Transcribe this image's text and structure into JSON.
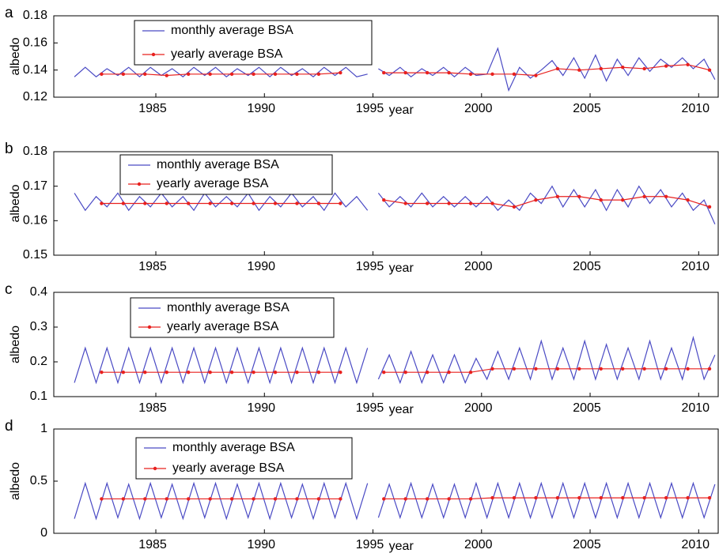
{
  "chart_data": [
    {
      "type": "line",
      "panel_label": "a",
      "xlabel": "year",
      "ylabel": "albedo",
      "xlim": [
        1980.3,
        2010.9
      ],
      "xticks": [
        1985,
        1990,
        1995,
        2000,
        2005,
        2010
      ],
      "ylim": [
        0.12,
        0.18
      ],
      "yticks": [
        0.12,
        0.14,
        0.16,
        0.18
      ],
      "legend": "upper left",
      "series": [
        {
          "name": "monthly average BSA",
          "color": "#4a4ac4",
          "marker": false,
          "x": [
            1981.25,
            1981.75,
            1982.25,
            1982.75,
            1983.25,
            1983.75,
            1984.25,
            1984.75,
            1985.25,
            1985.75,
            1986.25,
            1986.75,
            1987.25,
            1987.75,
            1988.25,
            1988.75,
            1989.25,
            1989.75,
            1990.25,
            1990.75,
            1991.25,
            1991.75,
            1992.25,
            1992.75,
            1993.25,
            1993.75,
            1994.25,
            1994.75,
            1995.0,
            1995.25,
            1995.75,
            1996.25,
            1996.75,
            1997.25,
            1997.75,
            1998.25,
            1998.75,
            1999.25,
            1999.75,
            2000.25,
            2000.75,
            2001.25,
            2001.75,
            2002.25,
            2002.75,
            2003.25,
            2003.75,
            2004.25,
            2004.75,
            2005.25,
            2005.75,
            2006.25,
            2006.75,
            2007.25,
            2007.75,
            2008.25,
            2008.75,
            2009.25,
            2009.75,
            2010.25,
            2010.75
          ],
          "values": [
            0.135,
            0.142,
            0.135,
            0.141,
            0.136,
            0.142,
            0.135,
            0.142,
            0.136,
            0.141,
            0.135,
            0.142,
            0.136,
            0.142,
            0.135,
            0.141,
            0.136,
            0.142,
            0.135,
            0.142,
            0.136,
            0.141,
            0.135,
            0.142,
            0.136,
            0.142,
            0.135,
            0.137,
            null,
            0.141,
            0.136,
            0.142,
            0.135,
            0.141,
            0.136,
            0.142,
            0.135,
            0.142,
            0.136,
            0.137,
            0.156,
            0.125,
            0.142,
            0.134,
            0.14,
            0.147,
            0.136,
            0.149,
            0.134,
            0.151,
            0.132,
            0.148,
            0.136,
            0.149,
            0.139,
            0.148,
            0.142,
            0.149,
            0.141,
            0.148,
            0.133
          ]
        },
        {
          "name": "yearly average BSA",
          "color": "#e8201e",
          "marker": true,
          "x": [
            1982.5,
            1983.5,
            1984.5,
            1985.5,
            1986.5,
            1987.5,
            1988.5,
            1989.5,
            1990.5,
            1991.5,
            1992.5,
            1993.5,
            1994.5,
            1995.5,
            1996.5,
            1997.5,
            1998.5,
            1999.5,
            2000.5,
            2001.5,
            2002.5,
            2003.5,
            2004.5,
            2005.5,
            2006.5,
            2007.5,
            2008.5,
            2009.5,
            2010.5
          ],
          "values": [
            0.137,
            0.137,
            0.137,
            0.136,
            0.137,
            0.137,
            0.137,
            0.137,
            0.137,
            0.137,
            0.137,
            0.138,
            null,
            0.138,
            0.138,
            0.138,
            0.138,
            0.137,
            0.137,
            0.137,
            0.136,
            0.141,
            0.14,
            0.141,
            0.142,
            0.141,
            0.143,
            0.144,
            0.14
          ]
        }
      ]
    },
    {
      "type": "line",
      "panel_label": "b",
      "xlabel": "year",
      "ylabel": "albedo",
      "xlim": [
        1980.3,
        2010.9
      ],
      "xticks": [
        1985,
        1990,
        1995,
        2000,
        2005,
        2010
      ],
      "ylim": [
        0.15,
        0.18
      ],
      "yticks": [
        0.15,
        0.16,
        0.17,
        0.18
      ],
      "legend": "upper left",
      "series": [
        {
          "name": "monthly average BSA",
          "color": "#4a4ac4",
          "marker": false,
          "x": [
            1981.25,
            1981.75,
            1982.25,
            1982.75,
            1983.25,
            1983.75,
            1984.25,
            1984.75,
            1985.25,
            1985.75,
            1986.25,
            1986.75,
            1987.25,
            1987.75,
            1988.25,
            1988.75,
            1989.25,
            1989.75,
            1990.25,
            1990.75,
            1991.25,
            1991.75,
            1992.25,
            1992.75,
            1993.25,
            1993.75,
            1994.25,
            1994.75,
            1995.0,
            1995.25,
            1995.75,
            1996.25,
            1996.75,
            1997.25,
            1997.75,
            1998.25,
            1998.75,
            1999.25,
            1999.75,
            2000.25,
            2000.75,
            2001.25,
            2001.75,
            2002.25,
            2002.75,
            2003.25,
            2003.75,
            2004.25,
            2004.75,
            2005.25,
            2005.75,
            2006.25,
            2006.75,
            2007.25,
            2007.75,
            2008.25,
            2008.75,
            2009.25,
            2009.75,
            2010.25,
            2010.75
          ],
          "values": [
            0.168,
            0.163,
            0.167,
            0.164,
            0.168,
            0.163,
            0.167,
            0.164,
            0.168,
            0.164,
            0.167,
            0.163,
            0.168,
            0.164,
            0.167,
            0.164,
            0.168,
            0.163,
            0.167,
            0.164,
            0.168,
            0.164,
            0.167,
            0.163,
            0.168,
            0.164,
            0.167,
            0.163,
            null,
            0.168,
            0.164,
            0.167,
            0.164,
            0.168,
            0.164,
            0.167,
            0.164,
            0.167,
            0.164,
            0.167,
            0.163,
            0.166,
            0.163,
            0.168,
            0.165,
            0.17,
            0.164,
            0.169,
            0.164,
            0.169,
            0.163,
            0.169,
            0.164,
            0.17,
            0.165,
            0.169,
            0.164,
            0.168,
            0.163,
            0.166,
            0.159
          ]
        },
        {
          "name": "yearly average BSA",
          "color": "#e8201e",
          "marker": true,
          "x": [
            1982.5,
            1983.5,
            1984.5,
            1985.5,
            1986.5,
            1987.5,
            1988.5,
            1989.5,
            1990.5,
            1991.5,
            1992.5,
            1993.5,
            1994.5,
            1995.5,
            1996.5,
            1997.5,
            1998.5,
            1999.5,
            2000.5,
            2001.5,
            2002.5,
            2003.5,
            2004.5,
            2005.5,
            2006.5,
            2007.5,
            2008.5,
            2009.5,
            2010.5
          ],
          "values": [
            0.165,
            0.165,
            0.165,
            0.165,
            0.165,
            0.165,
            0.165,
            0.165,
            0.165,
            0.165,
            0.165,
            0.165,
            null,
            0.166,
            0.165,
            0.165,
            0.165,
            0.165,
            0.165,
            0.164,
            0.166,
            0.167,
            0.167,
            0.166,
            0.166,
            0.167,
            0.167,
            0.166,
            0.164
          ]
        }
      ]
    },
    {
      "type": "line",
      "panel_label": "c",
      "xlabel": "year",
      "ylabel": "albedo",
      "xlim": [
        1980.3,
        2010.9
      ],
      "xticks": [
        1985,
        1990,
        1995,
        2000,
        2005,
        2010
      ],
      "ylim": [
        0.1,
        0.4
      ],
      "yticks": [
        0.1,
        0.2,
        0.3,
        0.4
      ],
      "legend": "upper left",
      "series": [
        {
          "name": "monthly average BSA",
          "color": "#4a4ac4",
          "marker": false,
          "x": [
            1981.25,
            1981.75,
            1982.25,
            1982.75,
            1983.25,
            1983.75,
            1984.25,
            1984.75,
            1985.25,
            1985.75,
            1986.25,
            1986.75,
            1987.25,
            1987.75,
            1988.25,
            1988.75,
            1989.25,
            1989.75,
            1990.25,
            1990.75,
            1991.25,
            1991.75,
            1992.25,
            1992.75,
            1993.25,
            1993.75,
            1994.25,
            1994.75,
            1995.0,
            1995.25,
            1995.75,
            1996.25,
            1996.75,
            1997.25,
            1997.75,
            1998.25,
            1998.75,
            1999.25,
            1999.75,
            2000.25,
            2000.75,
            2001.25,
            2001.75,
            2002.25,
            2002.75,
            2003.25,
            2003.75,
            2004.25,
            2004.75,
            2005.25,
            2005.75,
            2006.25,
            2006.75,
            2007.25,
            2007.75,
            2008.25,
            2008.75,
            2009.25,
            2009.75,
            2010.25,
            2010.75
          ],
          "values": [
            0.14,
            0.24,
            0.14,
            0.24,
            0.14,
            0.24,
            0.14,
            0.24,
            0.14,
            0.24,
            0.14,
            0.24,
            0.14,
            0.24,
            0.14,
            0.24,
            0.14,
            0.24,
            0.14,
            0.24,
            0.14,
            0.24,
            0.14,
            0.24,
            0.14,
            0.24,
            0.14,
            0.24,
            null,
            0.15,
            0.22,
            0.14,
            0.23,
            0.14,
            0.22,
            0.14,
            0.22,
            0.14,
            0.21,
            0.15,
            0.23,
            0.15,
            0.24,
            0.15,
            0.26,
            0.15,
            0.24,
            0.15,
            0.26,
            0.15,
            0.25,
            0.15,
            0.24,
            0.15,
            0.26,
            0.15,
            0.24,
            0.15,
            0.27,
            0.15,
            0.22
          ]
        },
        {
          "name": "yearly average BSA",
          "color": "#e8201e",
          "marker": true,
          "x": [
            1982.5,
            1983.5,
            1984.5,
            1985.5,
            1986.5,
            1987.5,
            1988.5,
            1989.5,
            1990.5,
            1991.5,
            1992.5,
            1993.5,
            1994.5,
            1995.5,
            1996.5,
            1997.5,
            1998.5,
            1999.5,
            2000.5,
            2001.5,
            2002.5,
            2003.5,
            2004.5,
            2005.5,
            2006.5,
            2007.5,
            2008.5,
            2009.5,
            2010.5
          ],
          "values": [
            0.17,
            0.17,
            0.17,
            0.17,
            0.17,
            0.17,
            0.17,
            0.17,
            0.17,
            0.17,
            0.17,
            0.17,
            null,
            0.17,
            0.17,
            0.17,
            0.17,
            0.17,
            0.18,
            0.18,
            0.18,
            0.18,
            0.18,
            0.18,
            0.18,
            0.18,
            0.18,
            0.18,
            0.18
          ]
        }
      ]
    },
    {
      "type": "line",
      "panel_label": "d",
      "xlabel": "year",
      "ylabel": "albedo",
      "xlim": [
        1980.3,
        2010.9
      ],
      "xticks": [
        1985,
        1990,
        1995,
        2000,
        2005,
        2010
      ],
      "ylim": [
        0,
        1
      ],
      "yticks": [
        0,
        0.5,
        1
      ],
      "legend": "upper left",
      "series": [
        {
          "name": "monthly average BSA",
          "color": "#4a4ac4",
          "marker": false,
          "x": [
            1981.25,
            1981.75,
            1982.25,
            1982.75,
            1983.25,
            1983.75,
            1984.25,
            1984.75,
            1985.25,
            1985.75,
            1986.25,
            1986.75,
            1987.25,
            1987.75,
            1988.25,
            1988.75,
            1989.25,
            1989.75,
            1990.25,
            1990.75,
            1991.25,
            1991.75,
            1992.25,
            1992.75,
            1993.25,
            1993.75,
            1994.25,
            1994.75,
            1995.0,
            1995.25,
            1995.75,
            1996.25,
            1996.75,
            1997.25,
            1997.75,
            1998.25,
            1998.75,
            1999.25,
            1999.75,
            2000.25,
            2000.75,
            2001.25,
            2001.75,
            2002.25,
            2002.75,
            2003.25,
            2003.75,
            2004.25,
            2004.75,
            2005.25,
            2005.75,
            2006.25,
            2006.75,
            2007.25,
            2007.75,
            2008.25,
            2008.75,
            2009.25,
            2009.75,
            2010.25,
            2010.75
          ],
          "values": [
            0.14,
            0.48,
            0.14,
            0.48,
            0.15,
            0.47,
            0.14,
            0.48,
            0.15,
            0.47,
            0.14,
            0.48,
            0.15,
            0.48,
            0.14,
            0.47,
            0.15,
            0.48,
            0.14,
            0.48,
            0.15,
            0.47,
            0.14,
            0.48,
            0.15,
            0.48,
            0.14,
            0.48,
            null,
            0.15,
            0.47,
            0.15,
            0.48,
            0.15,
            0.47,
            0.15,
            0.47,
            0.15,
            0.48,
            0.15,
            0.48,
            0.15,
            0.48,
            0.15,
            0.48,
            0.15,
            0.48,
            0.15,
            0.48,
            0.15,
            0.48,
            0.15,
            0.48,
            0.15,
            0.48,
            0.15,
            0.48,
            0.15,
            0.48,
            0.15,
            0.47
          ]
        },
        {
          "name": "yearly average BSA",
          "color": "#e8201e",
          "marker": true,
          "x": [
            1982.5,
            1983.5,
            1984.5,
            1985.5,
            1986.5,
            1987.5,
            1988.5,
            1989.5,
            1990.5,
            1991.5,
            1992.5,
            1993.5,
            1994.5,
            1995.5,
            1996.5,
            1997.5,
            1998.5,
            1999.5,
            2000.5,
            2001.5,
            2002.5,
            2003.5,
            2004.5,
            2005.5,
            2006.5,
            2007.5,
            2008.5,
            2009.5,
            2010.5
          ],
          "values": [
            0.33,
            0.33,
            0.33,
            0.33,
            0.33,
            0.33,
            0.33,
            0.33,
            0.33,
            0.33,
            0.33,
            0.33,
            null,
            0.33,
            0.33,
            0.33,
            0.33,
            0.33,
            0.34,
            0.34,
            0.34,
            0.34,
            0.34,
            0.34,
            0.34,
            0.34,
            0.34,
            0.34,
            0.34
          ]
        }
      ]
    }
  ]
}
